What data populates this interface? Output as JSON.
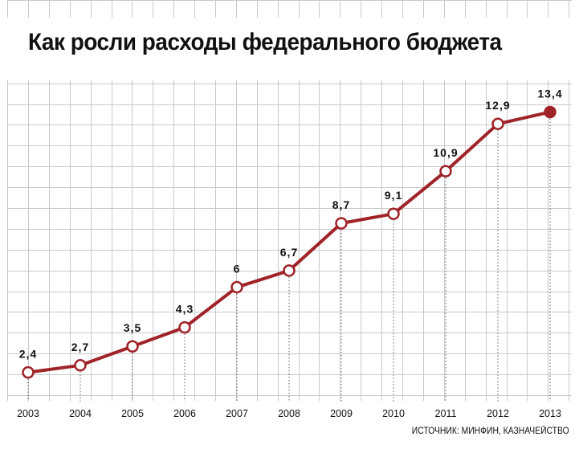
{
  "title": "Как росли расходы федерального бюджета",
  "source": "ИСТОЧНИК: МИНФИН, КАЗНАЧЕЙСТВО",
  "colors": {
    "line": "#a02328",
    "grid": "#c9c9c9",
    "text": "#111111"
  },
  "chart_data": {
    "type": "line",
    "title": "Как росли расходы федерального бюджета",
    "xlabel": "",
    "ylabel": "",
    "categories": [
      "2003",
      "2004",
      "2005",
      "2006",
      "2007",
      "2008",
      "2009",
      "2010",
      "2011",
      "2012",
      "2013"
    ],
    "series": [
      {
        "values": [
          2.4,
          2.7,
          3.5,
          4.3,
          6,
          6.7,
          8.7,
          9.1,
          10.9,
          12.9,
          13.4
        ],
        "labels": [
          "2,4",
          "2,7",
          "3,5",
          "4,3",
          "6",
          "6,7",
          "8,7",
          "9,1",
          "10,9",
          "12,9",
          "13,4"
        ]
      }
    ],
    "ylim": [
      1.2,
      14.4
    ],
    "grid": true,
    "legend": "none",
    "last_point_filled": true
  }
}
